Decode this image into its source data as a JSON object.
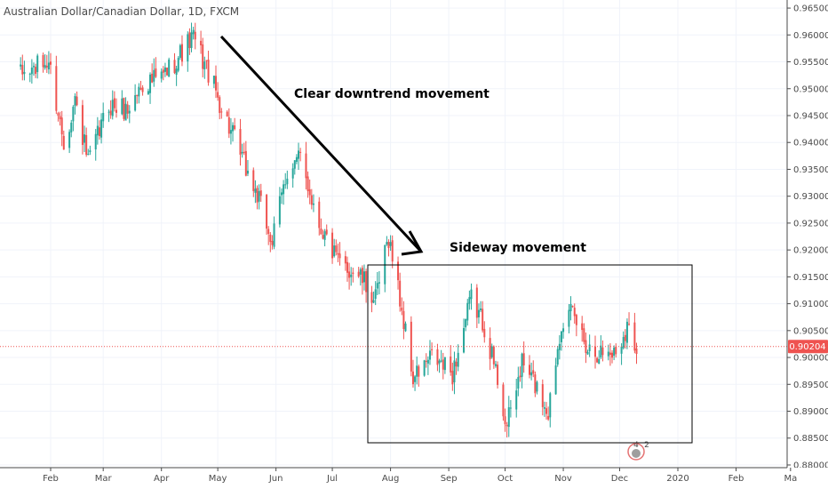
{
  "header": {
    "title": "Australian Dollar/Canadian Dollar, 1D, FXCM"
  },
  "price_axis": {
    "ticks": [
      "0.96500",
      "0.96000",
      "0.95500",
      "0.95000",
      "0.94500",
      "0.94000",
      "0.93500",
      "0.93000",
      "0.92500",
      "0.92000",
      "0.91500",
      "0.91000",
      "0.90500",
      "0.90000",
      "0.89500",
      "0.89000",
      "0.88500",
      "0.88000"
    ],
    "last_price_label": "0.90204"
  },
  "time_axis": {
    "labels": [
      "Feb",
      "Mar",
      "Apr",
      "May",
      "Jun",
      "Jul",
      "Aug",
      "Sep",
      "Oct",
      "Nov",
      "Dec",
      "2020",
      "Feb",
      "Ma"
    ]
  },
  "annotations": {
    "downtrend": "Clear downtrend movement",
    "sideways": "Sideway movement"
  },
  "events_badge": {
    "count_a": "4",
    "count_b": "2"
  },
  "colors": {
    "up": "#26a69a",
    "down": "#ef5350",
    "last_price": "#ef5350",
    "grid": "#f0f3fa",
    "axis": "#4a4a4a"
  },
  "chart_data": {
    "type": "candlestick",
    "title": "Australian Dollar/Canadian Dollar, 1D, FXCM",
    "symbol": "AUDCAD",
    "interval": "1D",
    "ylim": [
      0.8795,
      0.9665
    ],
    "y_scale": "linear",
    "grid": true,
    "last_price": 0.90204,
    "trend_points": [
      [
        "2019-01-16",
        0.9525
      ],
      [
        "2019-01-31",
        0.955
      ],
      [
        "2019-02-08",
        0.94
      ],
      [
        "2019-02-14",
        0.948
      ],
      [
        "2019-02-21",
        0.936
      ],
      [
        "2019-03-04",
        0.947
      ],
      [
        "2019-03-14",
        0.946
      ],
      [
        "2019-03-22",
        0.951
      ],
      [
        "2019-04-01",
        0.952
      ],
      [
        "2019-04-11",
        0.9565
      ],
      [
        "2019-04-18",
        0.9595
      ],
      [
        "2019-04-26",
        0.953
      ],
      [
        "2019-05-08",
        0.942
      ],
      [
        "2019-05-22",
        0.93
      ],
      [
        "2019-05-30",
        0.9215
      ],
      [
        "2019-06-07",
        0.935
      ],
      [
        "2019-06-14",
        0.937
      ],
      [
        "2019-06-24",
        0.925
      ],
      [
        "2019-07-04",
        0.9175
      ],
      [
        "2019-07-15",
        0.9155
      ],
      [
        "2019-07-24",
        0.9105
      ],
      [
        "2019-07-31",
        0.9225
      ],
      [
        "2019-08-05",
        0.913
      ],
      [
        "2019-08-13",
        0.896
      ],
      [
        "2019-08-23",
        0.9
      ],
      [
        "2019-09-03",
        0.897
      ],
      [
        "2019-09-13",
        0.911
      ],
      [
        "2019-09-20",
        0.906
      ],
      [
        "2019-09-27",
        0.896
      ],
      [
        "2019-10-02",
        0.887
      ],
      [
        "2019-10-10",
        0.899
      ],
      [
        "2019-10-17",
        0.895
      ],
      [
        "2019-10-24",
        0.89
      ],
      [
        "2019-10-31",
        0.907
      ],
      [
        "2019-11-06",
        0.908
      ],
      [
        "2019-11-14",
        0.902
      ],
      [
        "2019-11-21",
        0.901
      ],
      [
        "2019-11-29",
        0.901
      ],
      [
        "2019-12-05",
        0.906
      ],
      [
        "2019-12-10",
        0.902
      ]
    ]
  }
}
